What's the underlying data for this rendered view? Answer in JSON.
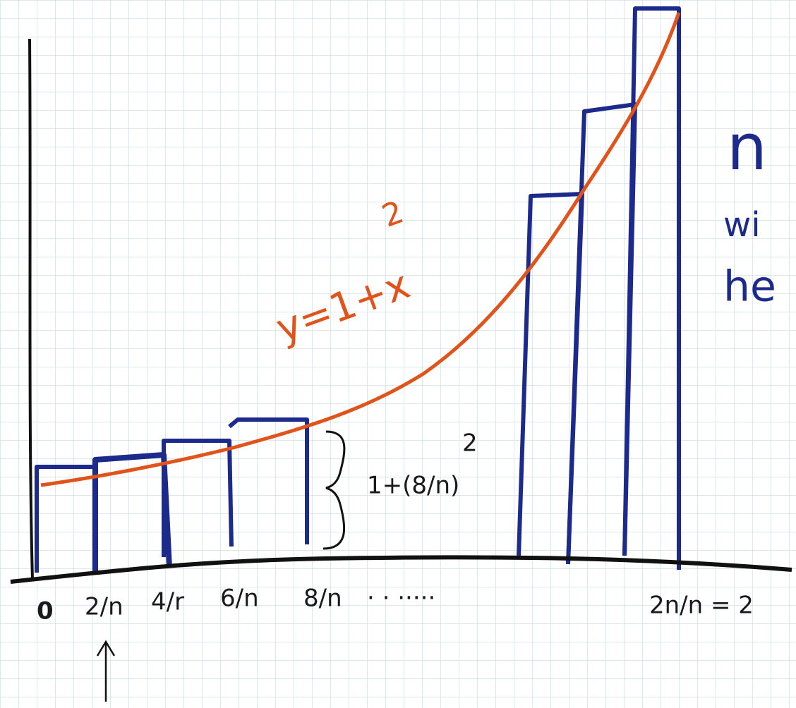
{
  "diagram": {
    "origin_label": "0",
    "tick_labels": [
      "2/n",
      "4/r",
      "6/n",
      "8/n"
    ],
    "ellipsis": ". . .....",
    "end_label": "2n/n = 2",
    "curve_label": {
      "base": "y=1+x",
      "exponent": "2"
    },
    "height_label": {
      "base": "1+(8/n)",
      "exponent": "2"
    },
    "side_text": [
      "n",
      "wi",
      "he"
    ]
  }
}
